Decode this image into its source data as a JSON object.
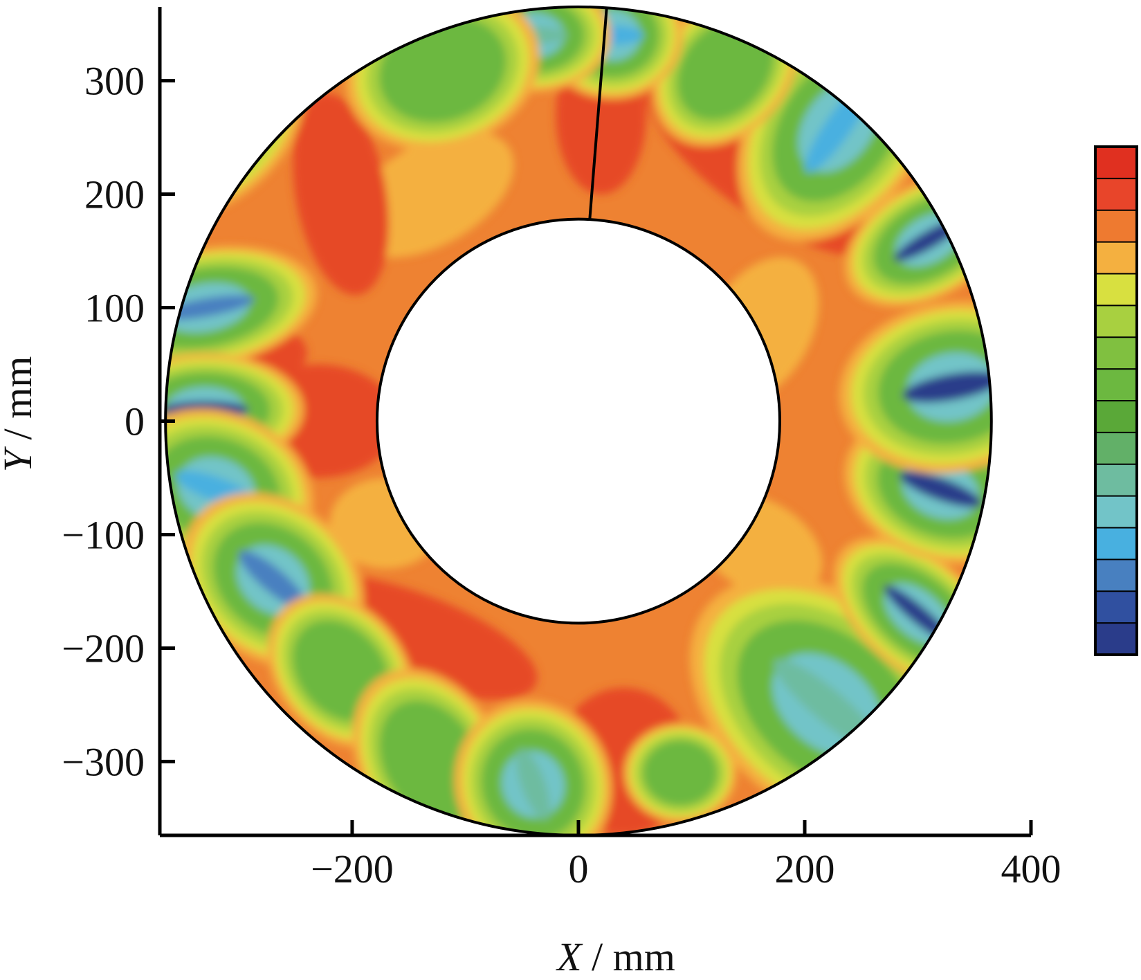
{
  "chart_data": {
    "type": "heatmap",
    "subtype": "annular contour map",
    "xlabel": {
      "var": "X",
      "unit": " / mm"
    },
    "ylabel": {
      "var": "Y",
      "unit": " / mm"
    },
    "xlim": [
      -370,
      400
    ],
    "ylim": [
      -365,
      365
    ],
    "x_ticks": [
      -200,
      0,
      200,
      400
    ],
    "x_tick_labels": [
      "−200",
      "0",
      "200",
      "400"
    ],
    "y_ticks": [
      -300,
      -200,
      -100,
      0,
      100,
      200,
      300
    ],
    "y_tick_labels": [
      "−300",
      "−200",
      "−100",
      "0",
      "100",
      "200",
      "300"
    ],
    "grid": false,
    "annulus": {
      "outer_radius": 365,
      "inner_radius": 178,
      "center": [
        0,
        0
      ],
      "seam_line": [
        [
          10,
          178
        ],
        [
          25,
          365
        ]
      ]
    },
    "colorbar": {
      "placement": "right",
      "levels": [
        "#e03020",
        "#e8452a",
        "#ee7a30",
        "#f4b040",
        "#d8e040",
        "#a8d040",
        "#80c040",
        "#6cb840",
        "#5aa838",
        "#62b068",
        "#6ebca0",
        "#72c4c8",
        "#48b0e0",
        "#4880c0",
        "#3050a0",
        "#2a3c8a"
      ]
    },
    "base_color": "#ee8232",
    "regions": [
      {
        "x": -330,
        "y": 260,
        "rx": 80,
        "ry": 55,
        "rot": 40,
        "level": "green",
        "core": "blue"
      },
      {
        "x": -330,
        "y": 100,
        "rx": 80,
        "ry": 42,
        "rot": 10,
        "level": "green",
        "core": "blue"
      },
      {
        "x": -330,
        "y": 10,
        "rx": 70,
        "ry": 40,
        "rot": 0,
        "level": "green",
        "core": "navy"
      },
      {
        "x": -320,
        "y": -60,
        "rx": 70,
        "ry": 55,
        "rot": -20,
        "level": "green",
        "core": "cyan"
      },
      {
        "x": -270,
        "y": -140,
        "rx": 70,
        "ry": 55,
        "rot": -40,
        "level": "green",
        "core": "blue"
      },
      {
        "x": -210,
        "y": -220,
        "rx": 60,
        "ry": 45,
        "rot": -50,
        "level": "green",
        "core": "none"
      },
      {
        "x": -130,
        "y": -300,
        "rx": 70,
        "ry": 50,
        "rot": -60,
        "level": "green",
        "core": "none"
      },
      {
        "x": -40,
        "y": -320,
        "rx": 60,
        "ry": 55,
        "rot": -70,
        "level": "green",
        "core": "teal"
      },
      {
        "x": 90,
        "y": -310,
        "rx": 40,
        "ry": 35,
        "rot": 0,
        "level": "green",
        "core": "none"
      },
      {
        "x": 220,
        "y": -250,
        "rx": 110,
        "ry": 75,
        "rot": -40,
        "level": "green",
        "core": "teal"
      },
      {
        "x": 300,
        "y": -170,
        "rx": 70,
        "ry": 40,
        "rot": -40,
        "level": "green",
        "core": "navy"
      },
      {
        "x": 320,
        "y": -60,
        "rx": 70,
        "ry": 50,
        "rot": -20,
        "level": "green",
        "core": "navy"
      },
      {
        "x": 330,
        "y": 30,
        "rx": 80,
        "ry": 60,
        "rot": 10,
        "level": "green",
        "core": "navy"
      },
      {
        "x": 310,
        "y": 160,
        "rx": 65,
        "ry": 40,
        "rot": 30,
        "level": "green",
        "core": "navy"
      },
      {
        "x": 230,
        "y": 260,
        "rx": 90,
        "ry": 60,
        "rot": 55,
        "level": "green",
        "core": "cyan"
      },
      {
        "x": 130,
        "y": 310,
        "rx": 60,
        "ry": 45,
        "rot": 50,
        "level": "green",
        "core": "none"
      },
      {
        "x": 30,
        "y": 340,
        "rx": 50,
        "ry": 45,
        "rot": 0,
        "level": "green",
        "core": "cyan"
      },
      {
        "x": -40,
        "y": 340,
        "rx": 55,
        "ry": 40,
        "rot": 0,
        "level": "green",
        "core": "teal"
      },
      {
        "x": -120,
        "y": 310,
        "rx": 70,
        "ry": 55,
        "rot": 20,
        "level": "green",
        "core": "none"
      }
    ],
    "hot_regions": [
      {
        "x": -300,
        "y": 60,
        "rx": 60,
        "ry": 30,
        "rot": 0
      },
      {
        "x": -230,
        "y": 0,
        "rx": 70,
        "ry": 50,
        "rot": 0
      },
      {
        "x": -150,
        "y": -190,
        "rx": 120,
        "ry": 40,
        "rot": -20
      },
      {
        "x": 40,
        "y": -300,
        "rx": 60,
        "ry": 65,
        "rot": 0
      },
      {
        "x": 170,
        "y": 230,
        "rx": 130,
        "ry": 50,
        "rot": -35
      },
      {
        "x": 20,
        "y": 270,
        "rx": 40,
        "ry": 70,
        "rot": 0
      },
      {
        "x": -210,
        "y": 200,
        "rx": 40,
        "ry": 90,
        "rot": 10
      }
    ],
    "warm_regions": [
      {
        "x": -130,
        "y": 200,
        "rx": 80,
        "ry": 45,
        "rot": 30
      },
      {
        "x": 160,
        "y": 80,
        "rx": 70,
        "ry": 45,
        "rot": 60
      },
      {
        "x": 160,
        "y": -110,
        "rx": 60,
        "ry": 40,
        "rot": -30
      },
      {
        "x": -170,
        "y": -90,
        "rx": 50,
        "ry": 40,
        "rot": 0
      }
    ]
  }
}
